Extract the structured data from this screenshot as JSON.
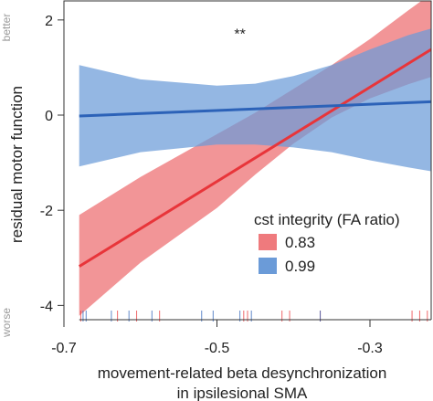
{
  "chart_data": {
    "type": "line",
    "title": "",
    "xlabel": [
      "movement-related beta desynchronization",
      "in ipsilesional SMA"
    ],
    "ylabel": "residual motor function",
    "xlim": [
      -0.7,
      -0.22
    ],
    "ylim": [
      -4.3,
      2.4
    ],
    "xticks": [
      "-0.7",
      "-0.5",
      "-0.3"
    ],
    "xtick_values": [
      -0.7,
      -0.5,
      -0.3
    ],
    "yticks": [
      "2",
      "0",
      "-2",
      "-4"
    ],
    "ytick_values": [
      2,
      0,
      -2,
      -4
    ],
    "y_side_labels": {
      "top": "better",
      "bottom": "worse"
    },
    "annotation": "**",
    "annotation_at": {
      "x": -0.47,
      "y": 1.6
    },
    "legend": {
      "title": "cst integrity (FA ratio)",
      "position": "bottom-right"
    },
    "x_range_lines": [
      -0.68,
      -0.22
    ],
    "series": [
      {
        "name": "0.83",
        "color": "#e8353a",
        "band_color": "#ef7a7d",
        "fit": [
          [
            -0.68,
            -3.18
          ],
          [
            -0.22,
            1.38
          ]
        ],
        "band_lower": [
          [
            -0.68,
            -4.22
          ],
          [
            -0.6,
            -3.1
          ],
          [
            -0.5,
            -1.95
          ],
          [
            -0.45,
            -1.25
          ],
          [
            -0.4,
            -0.6
          ],
          [
            -0.35,
            -0.05
          ],
          [
            -0.3,
            0.35
          ],
          [
            -0.25,
            0.65
          ],
          [
            -0.22,
            0.8
          ]
        ],
        "band_upper": [
          [
            -0.68,
            -2.1
          ],
          [
            -0.6,
            -1.3
          ],
          [
            -0.5,
            -0.4
          ],
          [
            -0.45,
            0.05
          ],
          [
            -0.4,
            0.55
          ],
          [
            -0.35,
            1.05
          ],
          [
            -0.3,
            1.6
          ],
          [
            -0.25,
            2.2
          ],
          [
            -0.22,
            2.55
          ]
        ],
        "rug": [
          -0.678,
          -0.63,
          -0.605,
          -0.575,
          -0.465,
          -0.46,
          -0.415,
          -0.405,
          -0.365,
          -0.245,
          -0.235,
          -0.225
        ]
      },
      {
        "name": "0.99",
        "color": "#2c62b8",
        "band_color": "#6b9bd8",
        "fit": [
          [
            -0.68,
            -0.02
          ],
          [
            -0.22,
            0.28
          ]
        ],
        "band_lower": [
          [
            -0.68,
            -1.08
          ],
          [
            -0.6,
            -0.78
          ],
          [
            -0.5,
            -0.62
          ],
          [
            -0.45,
            -0.62
          ],
          [
            -0.4,
            -0.68
          ],
          [
            -0.35,
            -0.78
          ],
          [
            -0.3,
            -0.95
          ],
          [
            -0.25,
            -1.1
          ],
          [
            -0.22,
            -1.18
          ]
        ],
        "band_upper": [
          [
            -0.68,
            1.05
          ],
          [
            -0.6,
            0.75
          ],
          [
            -0.5,
            0.62
          ],
          [
            -0.45,
            0.66
          ],
          [
            -0.4,
            0.82
          ],
          [
            -0.35,
            1.05
          ],
          [
            -0.3,
            1.38
          ],
          [
            -0.25,
            1.68
          ],
          [
            -0.22,
            1.82
          ]
        ],
        "rug": [
          -0.675,
          -0.671,
          -0.638,
          -0.615,
          -0.585,
          -0.52,
          -0.505,
          -0.47,
          -0.455,
          -0.365
        ]
      }
    ]
  }
}
